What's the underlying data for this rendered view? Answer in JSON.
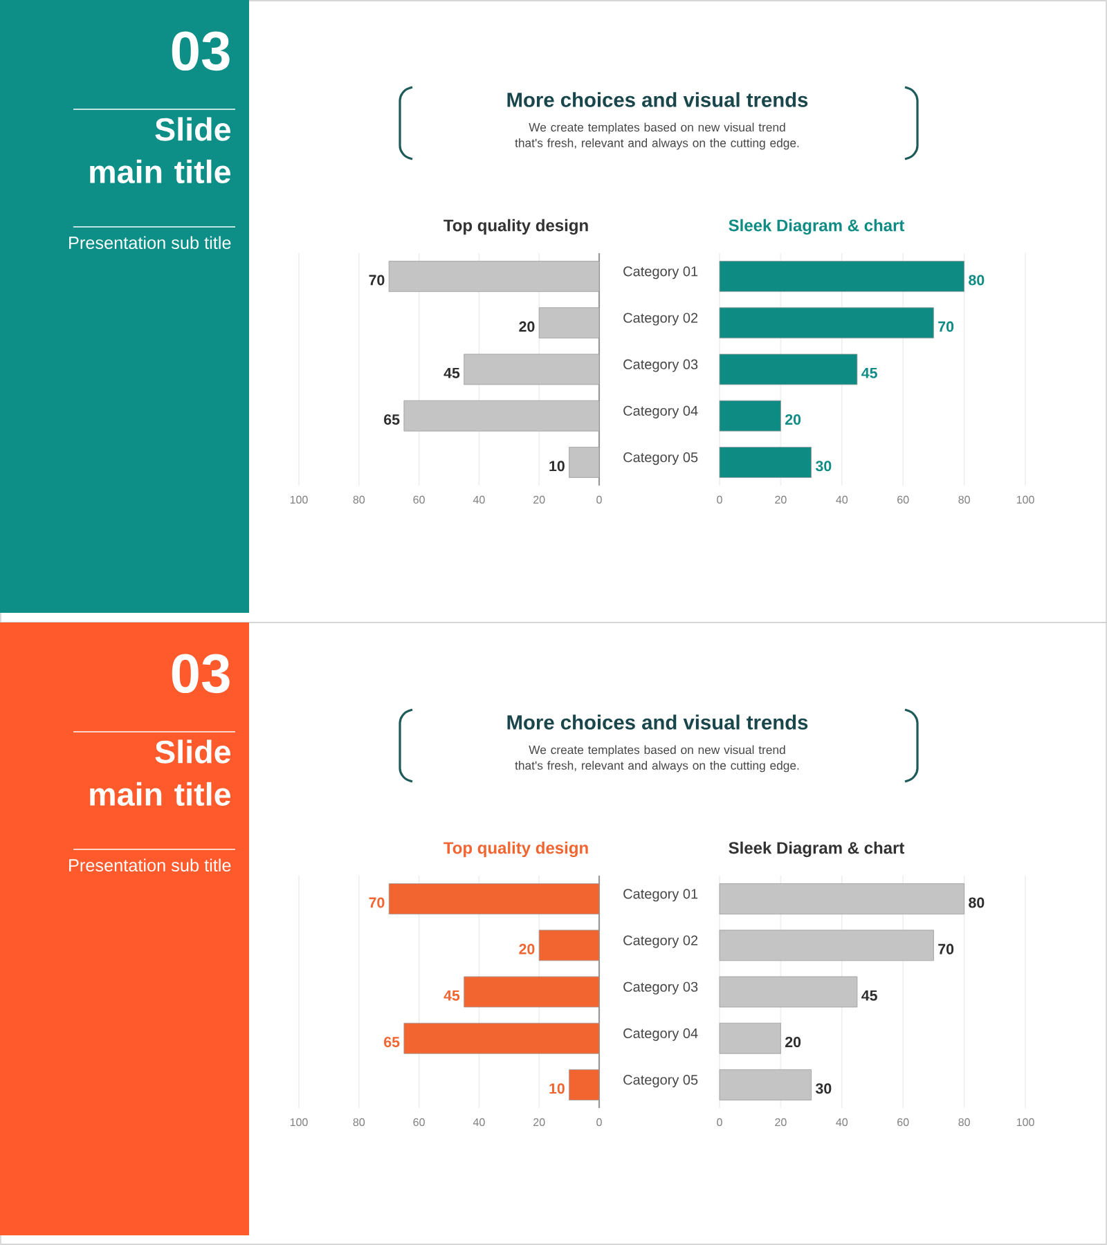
{
  "chart_data": [
    {
      "type": "other",
      "title": "Slide main title",
      "color": "#0d8f88",
      "annotations": [
        "03",
        "Presentation sub title",
        "More choices and visual trends",
        "We create templates based on new visual trend that's fresh, relevant and always on the cutting edge."
      ]
    },
    {
      "type": "bar",
      "orientation": "horizontal",
      "title": "Top quality design",
      "categories": [
        null,
        null,
        null,
        null,
        null
      ],
      "values": [
        70,
        20,
        45,
        65,
        10
      ],
      "color": "#c4c4c4",
      "xlim": [
        100,
        0
      ],
      "xticks": [
        100,
        80,
        60,
        40,
        20,
        0
      ],
      "grid": "x",
      "data_labels": true,
      "tick_labels": "x"
    },
    {
      "type": "bar",
      "orientation": "horizontal",
      "title": "Sleek Diagram & chart",
      "categories": [
        "Category 01",
        "Category 02",
        "Category 03",
        "Category 04",
        "Category 05"
      ],
      "values": [
        80,
        70,
        45,
        20,
        30
      ],
      "color": "#0e8c84",
      "xlim": [
        0,
        100
      ],
      "xticks": [
        0,
        20,
        40,
        60,
        80,
        100
      ],
      "grid": "x",
      "data_labels": true
    },
    {
      "type": "other",
      "title": "Slide main title",
      "color": "#ff5a2c",
      "annotations": [
        "03",
        "Presentation sub title",
        "More choices and visual trends",
        "We create templates based on new visual trend that's fresh, relevant and always on the cutting edge."
      ]
    },
    {
      "type": "bar",
      "orientation": "horizontal",
      "title": "Top quality design",
      "categories": [
        null,
        null,
        null,
        null,
        null
      ],
      "values": [
        70,
        20,
        45,
        65,
        10
      ],
      "color": "#f26430",
      "xlim": [
        100,
        0
      ],
      "xticks": [
        100,
        80,
        60,
        40,
        20,
        0
      ],
      "grid": "x",
      "data_labels": true,
      "tick_labels": "x"
    },
    {
      "type": "bar",
      "orientation": "horizontal",
      "title": "Sleek Diagram & chart",
      "categories": [
        "Category 01",
        "Category 02",
        "Category 03",
        "Category 04",
        "Category 05"
      ],
      "values": [
        80,
        70,
        45,
        20,
        30
      ],
      "color": "#c4c4c4",
      "xlim": [
        0,
        100
      ],
      "xticks": [
        0,
        20,
        40,
        60,
        80,
        100
      ],
      "grid": "x",
      "data_labels": true
    }
  ]
}
